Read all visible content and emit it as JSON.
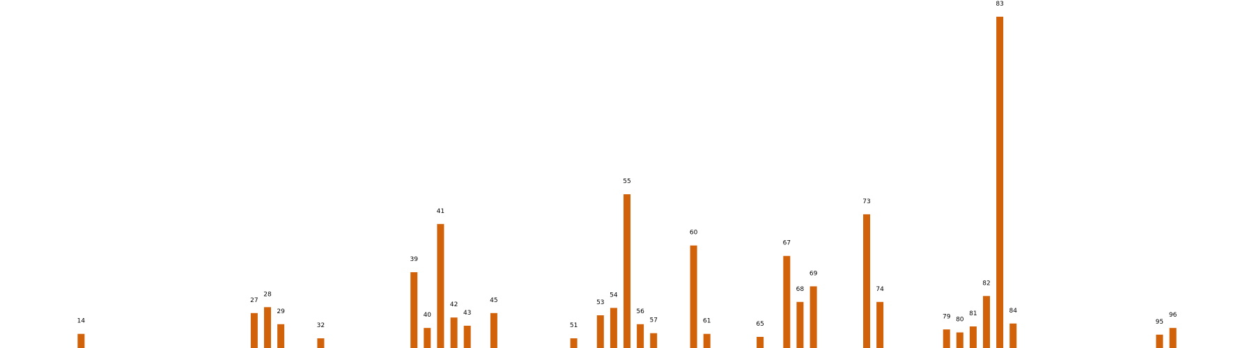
{
  "chart_data": {
    "type": "bar",
    "title": "",
    "xlabel": "",
    "ylabel": "",
    "grid": false,
    "legend": "none",
    "bar_color": "#d2620a",
    "categories": [
      14,
      27,
      28,
      29,
      32,
      39,
      40,
      41,
      42,
      43,
      45,
      51,
      53,
      54,
      55,
      56,
      57,
      60,
      61,
      65,
      67,
      68,
      69,
      73,
      74,
      79,
      80,
      81,
      82,
      83,
      84,
      95,
      96
    ],
    "labels": [
      "14",
      "27",
      "28",
      "29",
      "32",
      "39",
      "40",
      "41",
      "42",
      "43",
      "45",
      "51",
      "53",
      "54",
      "55",
      "56",
      "57",
      "60",
      "61",
      "65",
      "67",
      "68",
      "69",
      "73",
      "74",
      "79",
      "80",
      "81",
      "82",
      "83",
      "84",
      "95",
      "96"
    ],
    "values": [
      1.9,
      4.7,
      5.5,
      3.2,
      1.3,
      10.2,
      2.7,
      16.7,
      4.1,
      3.0,
      4.7,
      1.3,
      4.4,
      5.4,
      20.7,
      3.2,
      2.0,
      13.8,
      1.9,
      1.5,
      12.4,
      6.2,
      8.3,
      18.0,
      6.2,
      2.5,
      2.1,
      2.9,
      7.0,
      44.6,
      3.3,
      1.8,
      2.7
    ],
    "xlim": [
      10,
      100
    ],
    "ylim": [
      0,
      44.6
    ]
  }
}
